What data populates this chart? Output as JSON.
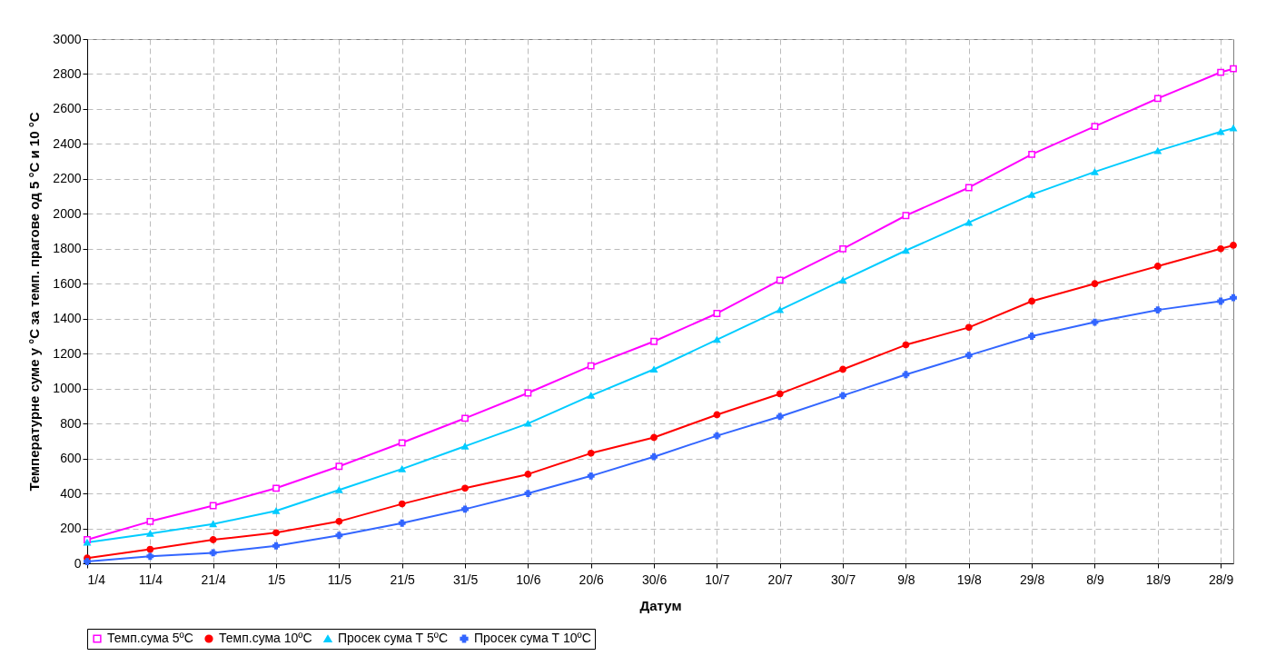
{
  "chart_data": {
    "type": "line",
    "xlabel": "Датум",
    "ylabel": "Температурне суме у  °C за темп. прагове од 5  °C и 10 °C",
    "x": [
      "--04-01",
      "--04-11",
      "--04-21",
      "--05-01",
      "--05-11",
      "--05-21",
      "--05-31",
      "--06-10",
      "--06-20",
      "--06-30",
      "--07-10",
      "--07-20",
      "--07-30",
      "--08-09",
      "--08-19",
      "--08-29",
      "--09-08",
      "--09-18",
      "--09-28",
      "--09-30"
    ],
    "series": [
      {
        "name": "Темп.сума 5ºC",
        "color": "#ff00ff",
        "marker": "square",
        "values": [
          135,
          240,
          330,
          430,
          555,
          690,
          830,
          975,
          1130,
          1270,
          1430,
          1620,
          1800,
          1990,
          2150,
          2340,
          2500,
          2660,
          2810,
          2830
        ]
      },
      {
        "name": "Темп.сума 10ºC",
        "color": "#ff0000",
        "marker": "circle",
        "values": [
          30,
          80,
          135,
          175,
          240,
          340,
          430,
          510,
          630,
          720,
          850,
          970,
          1110,
          1250,
          1350,
          1500,
          1600,
          1700,
          1800,
          1820
        ]
      },
      {
        "name": "Просек сума Т 5ºC",
        "color": "#00ccff",
        "marker": "triangle",
        "values": [
          120,
          170,
          225,
          300,
          420,
          540,
          670,
          800,
          960,
          1110,
          1280,
          1450,
          1620,
          1790,
          1950,
          2110,
          2240,
          2360,
          2470,
          2490
        ]
      },
      {
        "name": "Просек сума Т 10ºC",
        "color": "#3366ff",
        "marker": "cross",
        "values": [
          10,
          40,
          60,
          100,
          160,
          230,
          310,
          400,
          500,
          610,
          730,
          840,
          960,
          1080,
          1190,
          1300,
          1380,
          1450,
          1500,
          1520
        ]
      }
    ],
    "xlim": [
      "--04-01",
      "--09-30"
    ],
    "xticks": [
      {
        "value": "--04-01",
        "label": "1/4"
      },
      {
        "value": "--04-11",
        "label": "11/4"
      },
      {
        "value": "--04-21",
        "label": "21/4"
      },
      {
        "value": "--05-01",
        "label": "1/5"
      },
      {
        "value": "--05-11",
        "label": "11/5"
      },
      {
        "value": "--05-21",
        "label": "21/5"
      },
      {
        "value": "--05-31",
        "label": "31/5"
      },
      {
        "value": "--06-10",
        "label": "10/6"
      },
      {
        "value": "--06-20",
        "label": "20/6"
      },
      {
        "value": "--06-30",
        "label": "30/6"
      },
      {
        "value": "--07-10",
        "label": "10/7"
      },
      {
        "value": "--07-20",
        "label": "20/7"
      },
      {
        "value": "--07-30",
        "label": "30/7"
      },
      {
        "value": "--08-09",
        "label": "9/8"
      },
      {
        "value": "--08-19",
        "label": "19/8"
      },
      {
        "value": "--08-29",
        "label": "29/8"
      },
      {
        "value": "--09-08",
        "label": "8/9"
      },
      {
        "value": "--09-18",
        "label": "18/9"
      },
      {
        "value": "--09-28",
        "label": "28/9"
      }
    ],
    "ylim": [
      0,
      3000
    ],
    "yticks": [
      0,
      200,
      400,
      600,
      800,
      1000,
      1200,
      1400,
      1600,
      1800,
      2000,
      2200,
      2400,
      2600,
      2800,
      3000
    ],
    "grid": true,
    "legend": "bottom",
    "line_style": "solid"
  }
}
